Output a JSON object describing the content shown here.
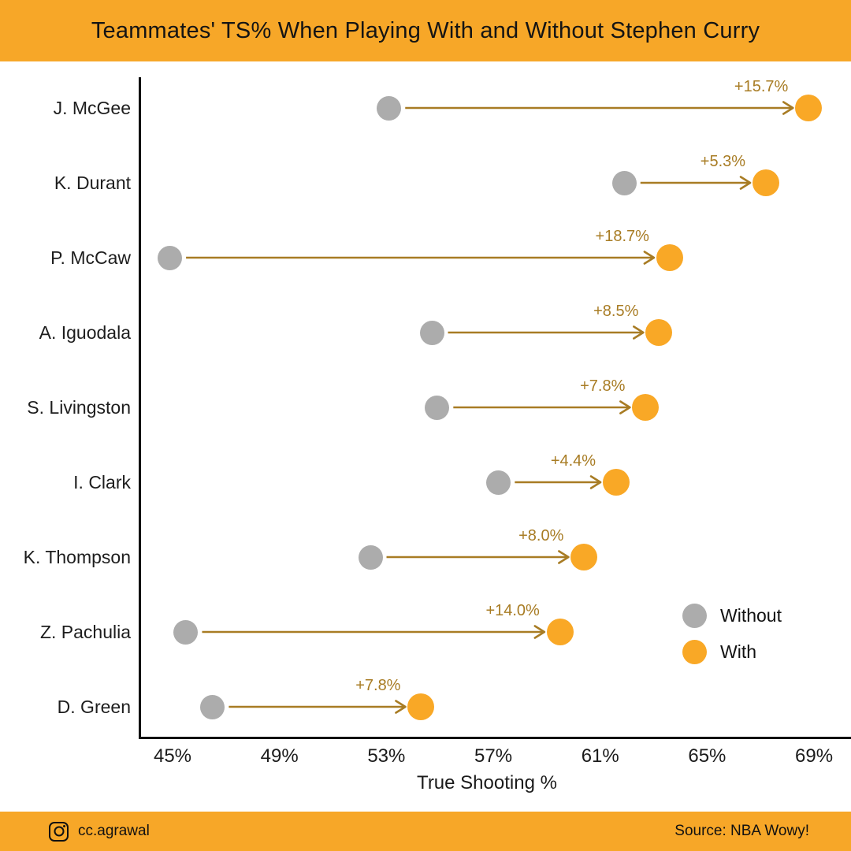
{
  "header": {
    "title": "Teammates' TS% When Playing With and Without Stephen Curry"
  },
  "chart_data": {
    "type": "dumbbell",
    "title": "Teammates' TS% When Playing With and Without Stephen Curry",
    "categories": [
      "J. McGee",
      "K. Durant",
      "P. McCaw",
      "A. Iguodala",
      "S. Livingston",
      "I. Clark",
      "K. Thompson",
      "Z. Pachulia",
      "D. Green"
    ],
    "series": [
      {
        "name": "Without",
        "color": "#ACACAC",
        "values": [
          53.1,
          61.9,
          44.9,
          54.7,
          54.9,
          57.2,
          52.4,
          45.5,
          46.5
        ]
      },
      {
        "name": "With",
        "color": "#F9A826",
        "values": [
          68.8,
          67.2,
          63.6,
          63.2,
          62.7,
          61.6,
          60.4,
          59.5,
          54.3
        ]
      }
    ],
    "delta_labels": [
      "+15.7%",
      "+5.3%",
      "+18.7%",
      "+8.5%",
      "+7.8%",
      "+4.4%",
      "+8.0%",
      "+14.0%",
      "+7.8%"
    ],
    "xlabel": "True Shooting %",
    "ylabel": "",
    "x_ticks": [
      "45%",
      "49%",
      "53%",
      "57%",
      "61%",
      "65%",
      "69%"
    ],
    "x_tick_values": [
      45,
      49,
      53,
      57,
      61,
      65,
      69
    ],
    "xlim": [
      43.8,
      70.4
    ],
    "grid": false,
    "legend_position": "inside-right",
    "arrow_color": "#A87C24"
  },
  "legend": {
    "items": [
      {
        "label": "Without",
        "color": "#ACACAC"
      },
      {
        "label": "With",
        "color": "#F9A826"
      }
    ]
  },
  "footer": {
    "handle": "cc.agrawal",
    "source": "Source: NBA Wowy!"
  },
  "colors": {
    "band": "#F7A728",
    "background": "#FFFFFF",
    "dot_without": "#ACACAC",
    "dot_with": "#F9A826",
    "arrow": "#A87C24",
    "text": "#141414"
  }
}
